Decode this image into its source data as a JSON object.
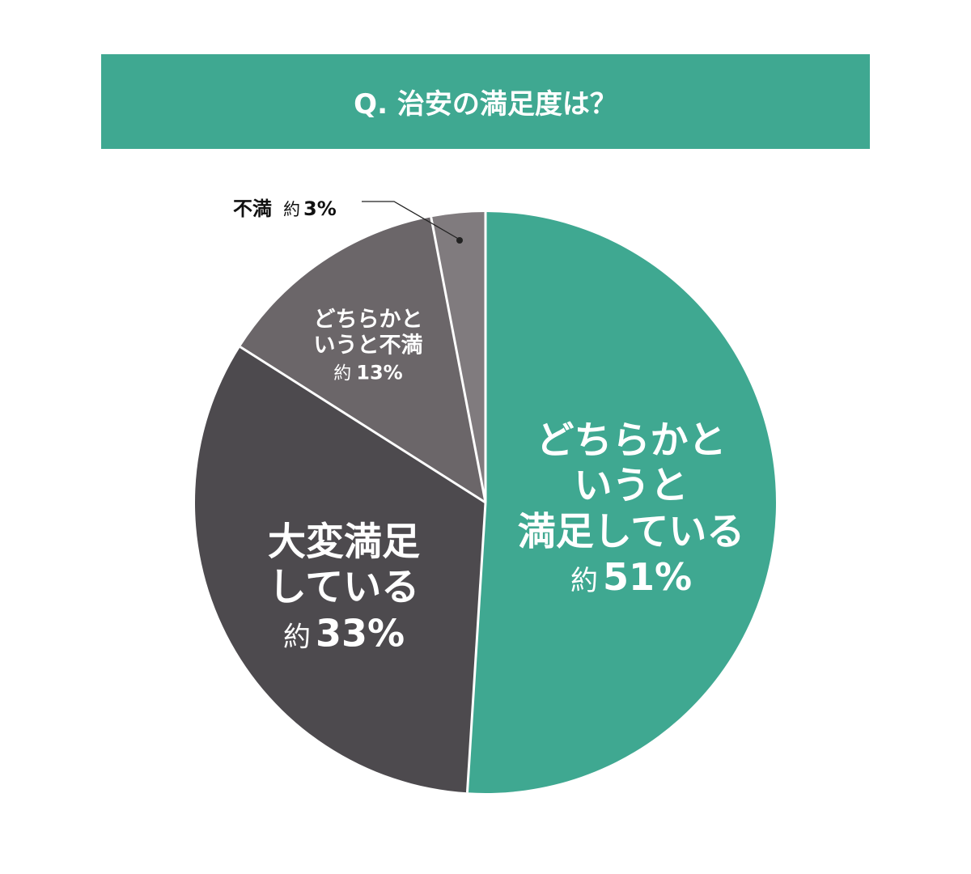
{
  "chart_data": {
    "type": "pie",
    "title": "Q. 治安の満足度は？",
    "slices": [
      {
        "label": [
          "どちらかと",
          "いうと",
          "満足している"
        ],
        "prefix": "約",
        "value_label": "51%",
        "value": 51,
        "color": "#3fa891"
      },
      {
        "label": [
          "大変満足",
          "している"
        ],
        "prefix": "約",
        "value_label": "33%",
        "value": 33,
        "color": "#4d4a4e"
      },
      {
        "label": [
          "どちらかと",
          "いうと不満"
        ],
        "prefix": "約",
        "value_label": "13%",
        "value": 13,
        "color": "#6b6669"
      },
      {
        "label": [
          "不満"
        ],
        "prefix": "約",
        "value_label": "3%",
        "value": 3,
        "color": "#807b7e"
      }
    ],
    "start": "top",
    "direction": "clockwise"
  },
  "colors": {
    "title_bg": "#3fa891",
    "separator": "#ffffff"
  }
}
